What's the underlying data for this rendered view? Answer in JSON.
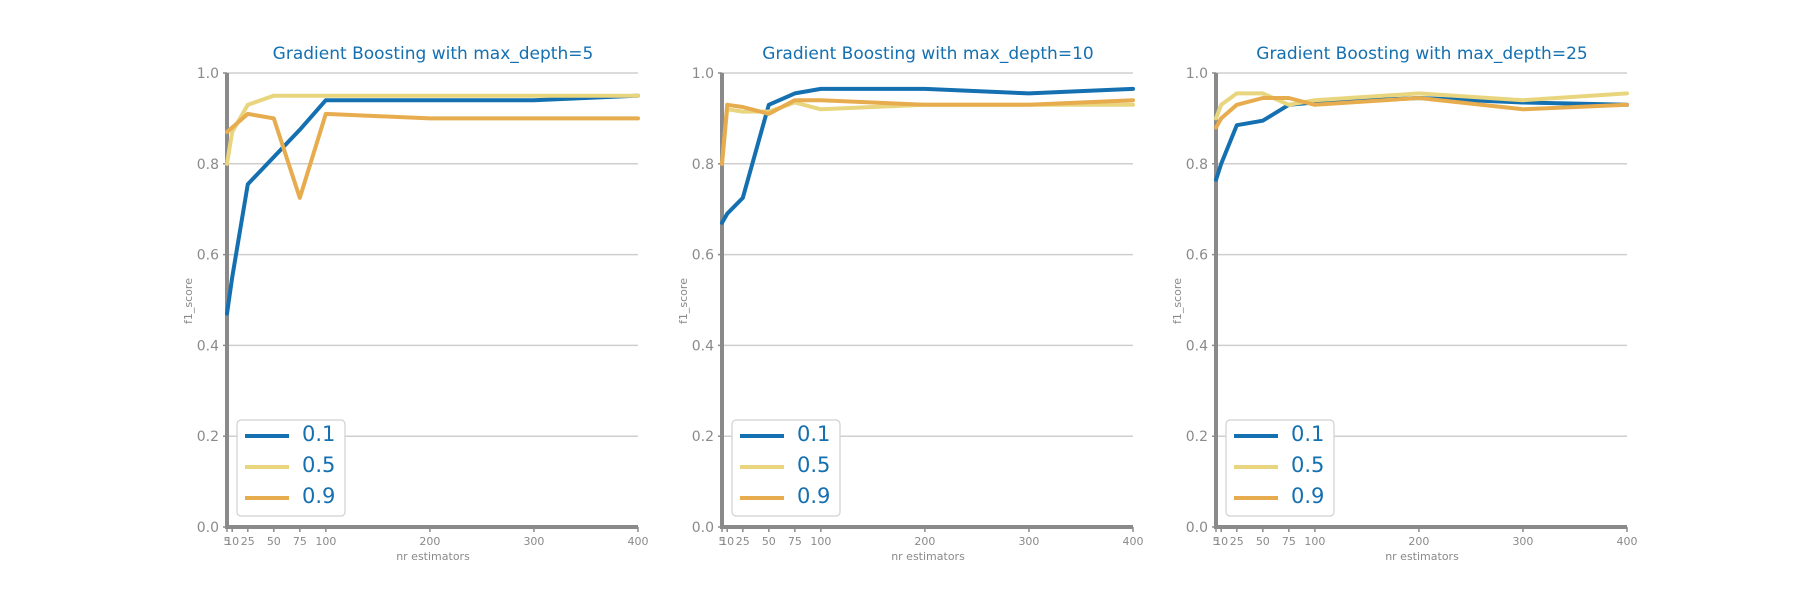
{
  "colors": {
    "accent": "#1470b0",
    "series": [
      "#1470b0",
      "#e8d57e",
      "#e6ac4e"
    ],
    "axis": "#8a8a8a",
    "grid": "#cfcfcf"
  },
  "chart_data": [
    {
      "type": "line",
      "title": "Gradient Boosting with max_depth=5",
      "xlabel": "nr estimators",
      "ylabel": "f1_score",
      "x": [
        5,
        10,
        25,
        50,
        75,
        100,
        200,
        300,
        400
      ],
      "xticks": [
        5,
        10,
        25,
        50,
        75,
        100,
        200,
        300,
        400
      ],
      "xlim": [
        5,
        400
      ],
      "ylim": [
        0,
        1
      ],
      "yticks": [
        "0.0",
        "0.2",
        "0.4",
        "0.6",
        "0.8",
        "1.0"
      ],
      "grid": true,
      "legend_position": "lower-left",
      "series": [
        {
          "name": "0.1",
          "values": [
            0.47,
            0.55,
            0.755,
            0.815,
            0.875,
            0.94,
            0.94,
            0.94,
            0.95
          ]
        },
        {
          "name": "0.5",
          "values": [
            0.8,
            0.87,
            0.93,
            0.95,
            0.95,
            0.95,
            0.95,
            0.95,
            0.95
          ]
        },
        {
          "name": "0.9",
          "values": [
            0.87,
            0.88,
            0.91,
            0.9,
            0.725,
            0.91,
            0.9,
            0.9,
            0.9
          ]
        }
      ]
    },
    {
      "type": "line",
      "title": "Gradient Boosting with max_depth=10",
      "xlabel": "nr estimators",
      "ylabel": "f1_score",
      "x": [
        5,
        10,
        25,
        50,
        75,
        100,
        200,
        300,
        400
      ],
      "xticks": [
        5,
        10,
        25,
        50,
        75,
        100,
        200,
        300,
        400
      ],
      "xlim": [
        5,
        400
      ],
      "ylim": [
        0,
        1
      ],
      "yticks": [
        "0.0",
        "0.2",
        "0.4",
        "0.6",
        "0.8",
        "1.0"
      ],
      "grid": true,
      "legend_position": "lower-left",
      "series": [
        {
          "name": "0.1",
          "values": [
            0.67,
            0.69,
            0.725,
            0.93,
            0.955,
            0.965,
            0.965,
            0.955,
            0.965
          ]
        },
        {
          "name": "0.5",
          "values": [
            0.8,
            0.92,
            0.915,
            0.915,
            0.935,
            0.92,
            0.93,
            0.93,
            0.93
          ]
        },
        {
          "name": "0.9",
          "values": [
            0.8,
            0.93,
            0.925,
            0.91,
            0.94,
            0.94,
            0.93,
            0.93,
            0.94
          ]
        }
      ]
    },
    {
      "type": "line",
      "title": "Gradient Boosting with max_depth=25",
      "xlabel": "nr estimators",
      "ylabel": "f1_score",
      "x": [
        5,
        10,
        25,
        50,
        75,
        100,
        200,
        300,
        400
      ],
      "xticks": [
        5,
        10,
        25,
        50,
        75,
        100,
        200,
        300,
        400
      ],
      "xlim": [
        5,
        400
      ],
      "ylim": [
        0,
        1
      ],
      "yticks": [
        "0.0",
        "0.2",
        "0.4",
        "0.6",
        "0.8",
        "1.0"
      ],
      "grid": true,
      "legend_position": "lower-left",
      "series": [
        {
          "name": "0.1",
          "values": [
            0.765,
            0.8,
            0.885,
            0.895,
            0.93,
            0.935,
            0.945,
            0.935,
            0.93
          ]
        },
        {
          "name": "0.5",
          "values": [
            0.9,
            0.93,
            0.955,
            0.955,
            0.93,
            0.94,
            0.955,
            0.94,
            0.955
          ]
        },
        {
          "name": "0.9",
          "values": [
            0.88,
            0.9,
            0.93,
            0.945,
            0.945,
            0.93,
            0.945,
            0.92,
            0.93
          ]
        }
      ]
    }
  ]
}
